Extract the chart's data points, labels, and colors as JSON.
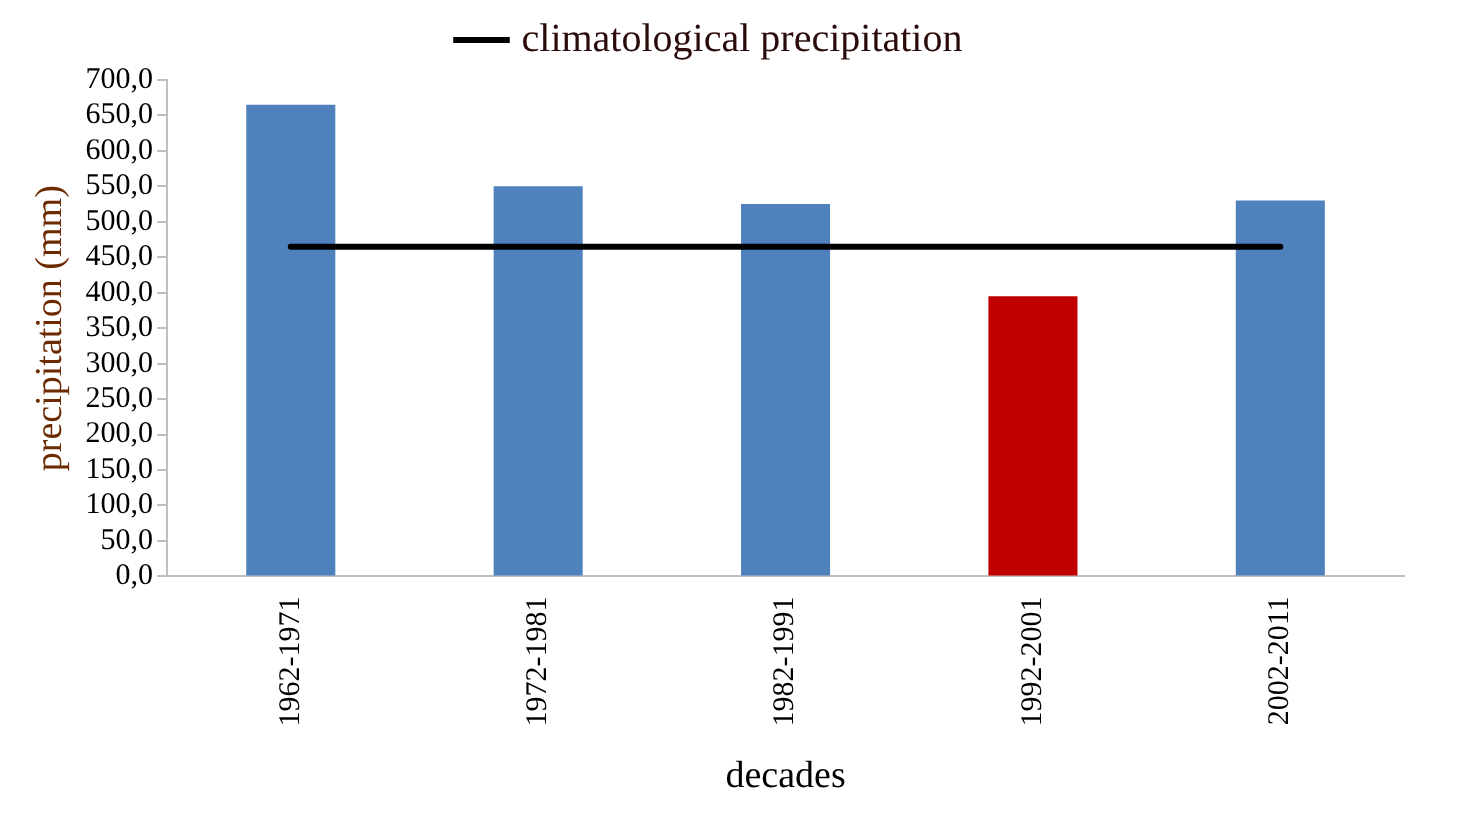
{
  "chart_data": {
    "type": "bar",
    "xlabel": "decades",
    "ylabel": "precipitation (mm)",
    "categories": [
      "1962-1971",
      "1972-1981",
      "1982-1991",
      "1992-2001",
      "2002-2011"
    ],
    "series": [
      {
        "colors": [
          "#4f81bd",
          "#4f81bd",
          "#4f81bd",
          "#c00000",
          "#4f81bd"
        ],
        "values": [
          665,
          550,
          525,
          395,
          530
        ]
      },
      {
        "type": "line",
        "name": "climatological precipitation",
        "color": "#000000",
        "values": [
          465,
          465,
          465,
          465,
          465
        ]
      }
    ],
    "ylim": [
      0,
      700
    ],
    "yticks": [
      {
        "value": 0,
        "label": "0,0"
      },
      {
        "value": 50,
        "label": "50,0"
      },
      {
        "value": 100,
        "label": "100,0"
      },
      {
        "value": 150,
        "label": "150,0"
      },
      {
        "value": 200,
        "label": "200,0"
      },
      {
        "value": 250,
        "label": "250,0"
      },
      {
        "value": 300,
        "label": "300,0"
      },
      {
        "value": 350,
        "label": "350,0"
      },
      {
        "value": 400,
        "label": "400,0"
      },
      {
        "value": 450,
        "label": "450,0"
      },
      {
        "value": 500,
        "label": "500,0"
      },
      {
        "value": 550,
        "label": "550,0"
      },
      {
        "value": 600,
        "label": "600,0"
      },
      {
        "value": 650,
        "label": "650,0"
      },
      {
        "value": 700,
        "label": "700,0"
      }
    ],
    "grid": false,
    "legend": "top",
    "marker": "none",
    "line_style": "solid"
  }
}
